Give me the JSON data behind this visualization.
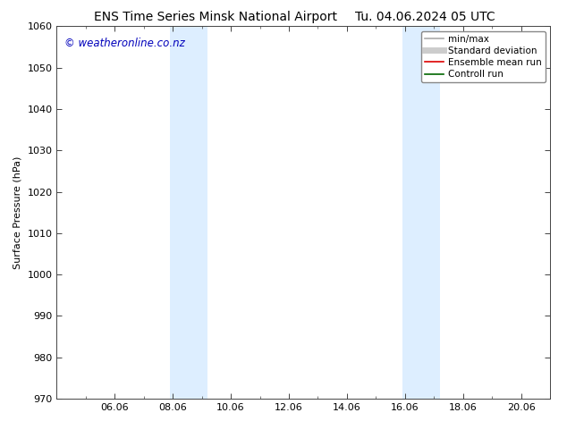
{
  "title_left": "ENS Time Series Minsk National Airport",
  "title_right": "Tu. 04.06.2024 05 UTC",
  "ylabel": "Surface Pressure (hPa)",
  "ylim": [
    970,
    1060
  ],
  "ytick_major": [
    970,
    980,
    990,
    1000,
    1010,
    1020,
    1030,
    1040,
    1050,
    1060
  ],
  "xtick_labels": [
    "06.06",
    "08.06",
    "10.06",
    "12.06",
    "14.06",
    "16.06",
    "18.06",
    "20.06"
  ],
  "xtick_positions": [
    2,
    4,
    6,
    8,
    10,
    12,
    14,
    16
  ],
  "xlim": [
    0,
    17.0
  ],
  "shaded_bands": [
    {
      "xmin": 3.9,
      "xmax": 5.2,
      "color": "#ddeeff"
    },
    {
      "xmin": 11.9,
      "xmax": 13.2,
      "color": "#ddeeff"
    }
  ],
  "watermark_text": "© weatheronline.co.nz",
  "watermark_color": "#0000bb",
  "watermark_fontsize": 8.5,
  "legend_entries": [
    {
      "label": "min/max",
      "color": "#aaaaaa",
      "lw": 1.2,
      "style": "solid"
    },
    {
      "label": "Standard deviation",
      "color": "#cccccc",
      "lw": 5,
      "style": "solid"
    },
    {
      "label": "Ensemble mean run",
      "color": "#dd0000",
      "lw": 1.2,
      "style": "solid"
    },
    {
      "label": "Controll run",
      "color": "#006600",
      "lw": 1.2,
      "style": "solid"
    }
  ],
  "background_color": "#ffffff",
  "plot_bg_color": "#ffffff",
  "title_fontsize": 10,
  "axis_label_fontsize": 8,
  "tick_fontsize": 8
}
